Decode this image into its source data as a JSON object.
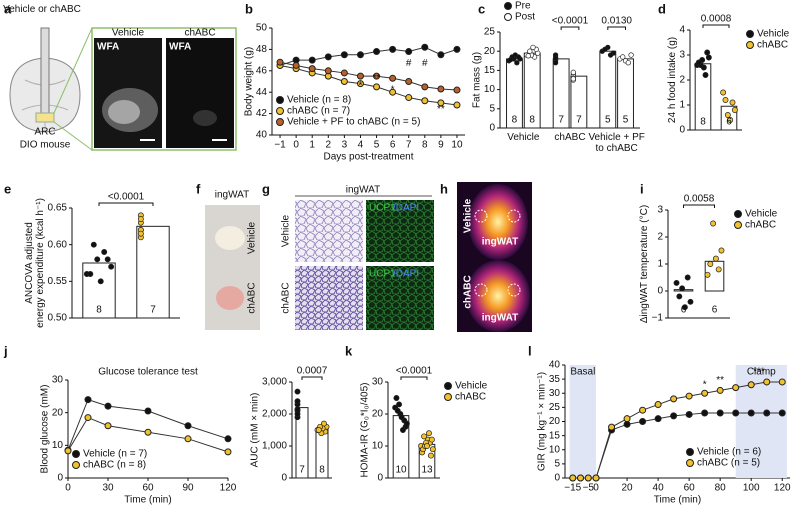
{
  "chart_data": [
    {
      "panel": "b",
      "type": "line",
      "ylabel": "Body weight (g)",
      "xlabel": "Days post-treatment",
      "x": [
        -1,
        0,
        1,
        2,
        3,
        4,
        5,
        6,
        7,
        8,
        9,
        10
      ],
      "xlim": [
        -1.5,
        10.5
      ],
      "xticks": [
        {
          "value": -1,
          "label": "−1"
        },
        0,
        1,
        2,
        3,
        4,
        5,
        6,
        7,
        8,
        9,
        10
      ],
      "ylim": [
        40,
        50
      ],
      "yticks": [
        40,
        42,
        44,
        46,
        48,
        50
      ],
      "legend": "bottom-left",
      "series": [
        {
          "name": "Vehicle (n = 8)",
          "color": "#111111",
          "values": [
            46.5,
            47,
            47,
            47.3,
            47.5,
            47.5,
            47.8,
            48,
            47.8,
            48.2,
            47.5,
            48
          ]
        },
        {
          "name": "chABC (n = 7)",
          "color": "#f2c12e",
          "values": [
            46.5,
            46.2,
            45.8,
            45.5,
            45,
            44.8,
            44.5,
            44,
            43.5,
            43.2,
            43,
            42.8
          ]
        },
        {
          "name": "Vehicle + PF to chABC (n = 5)",
          "color": "#b8612a",
          "values": [
            46.8,
            46.5,
            46.2,
            46,
            45.8,
            45.5,
            45.5,
            45.3,
            45,
            44.5,
            44.3,
            44.2
          ]
        }
      ],
      "annotations": [
        "*",
        "**",
        "*",
        "#",
        "#",
        "**"
      ]
    },
    {
      "panel": "c",
      "type": "bar",
      "ylabel": "Fat mass (g)",
      "categories": [
        "Vehicle",
        "chABC",
        "Vehicle + PF to chABC"
      ],
      "ylim": [
        0,
        25
      ],
      "yticks": [
        0,
        5,
        10,
        15,
        20,
        25
      ],
      "legend": "top",
      "series": [
        {
          "name": "Pre",
          "color": "#111111",
          "values": [
            18,
            18,
            20
          ],
          "n_labels": [
            "8",
            "7",
            "5"
          ],
          "points": [
            [
              17.5,
              18,
              18.5,
              17,
              19,
              18,
              18.5,
              17.8
            ],
            [
              18,
              18.5,
              17.5,
              19,
              18,
              17,
              18.2
            ],
            [
              20,
              21,
              19.5,
              20.5,
              19
            ]
          ]
        },
        {
          "name": "Post",
          "color": "#ffffff",
          "values": [
            19.5,
            13.5,
            18
          ],
          "n_labels": [
            "8",
            "7",
            "5"
          ],
          "points": [
            [
              19,
              19.5,
              20.5,
              18.5,
              21,
              19,
              20,
              18.8
            ],
            [
              13,
              14,
              12.5,
              13.5,
              14.5,
              13,
              12.8
            ],
            [
              18,
              17.5,
              19,
              18.5,
              17
            ]
          ]
        }
      ],
      "annotations": [
        "<0.0001",
        "0.0130"
      ]
    },
    {
      "panel": "d",
      "type": "bar",
      "ylabel": "24 h food intake (g)",
      "categories": [
        "Vehicle",
        "chABC"
      ],
      "values": [
        2.65,
        0.95
      ],
      "colors": [
        "#111111",
        "#f2c12e"
      ],
      "ylim": [
        0,
        4
      ],
      "yticks": [
        0,
        1,
        2,
        3,
        4
      ],
      "legend": "right",
      "points": [
        [
          2.6,
          2.9,
          3.1,
          2.2,
          2.5,
          2.8,
          2.6,
          2.7
        ],
        [
          1.5,
          1.2,
          0.6,
          0.4,
          1.1,
          0.8
        ]
      ],
      "n_labels": [
        "8",
        "6"
      ],
      "annotations": [
        "0.0008"
      ]
    },
    {
      "panel": "e",
      "type": "bar",
      "ylabel": [
        "ANCOVA adjusted",
        "energy expenditure (kcal h⁻¹)"
      ],
      "values": [
        0.575,
        0.625
      ],
      "colors": [
        "#111111",
        "#f2c12e"
      ],
      "ylim": [
        0.5,
        0.65
      ],
      "yticks": [
        {
          "value": 0.5,
          "label": "0.50"
        },
        0.55,
        {
          "value": 0.6,
          "label": "0.60"
        },
        0.65
      ],
      "points": [
        [
          0.56,
          0.57,
          0.58,
          0.59,
          0.55,
          0.58,
          0.6,
          0.56
        ],
        [
          0.61,
          0.62,
          0.64,
          0.63,
          0.62,
          0.615,
          0.635
        ]
      ],
      "n_labels": [
        "8",
        "7"
      ],
      "annotations": [
        "<0.0001"
      ]
    },
    {
      "panel": "i",
      "type": "bar",
      "ylabel": "ΔingWAT temperature (°C)",
      "categories": [
        "Vehicle",
        "chABC"
      ],
      "values": [
        0.05,
        1.1
      ],
      "colors": [
        "#111111",
        "#f2c12e"
      ],
      "ylim": [
        -1,
        3
      ],
      "yticks": [
        {
          "value": -1,
          "label": "−1"
        },
        0,
        1,
        2,
        3
      ],
      "legend": "right",
      "points": [
        [
          0.3,
          -0.2,
          0.1,
          -0.6,
          0.5,
          -0.4
        ],
        [
          0.6,
          1.0,
          2.5,
          1.2,
          0.8,
          1.5
        ]
      ],
      "n_labels": [
        "6",
        "6"
      ],
      "annotations": [
        "0.0058"
      ]
    },
    {
      "panel": "j",
      "type": "line",
      "title": "Glucose tolerance test",
      "ylabel": "Blood glucose (mM)",
      "xlabel": "Time (min)",
      "x": [
        0,
        15,
        30,
        60,
        90,
        120
      ],
      "xlim": [
        0,
        120
      ],
      "xticks": [
        0,
        30,
        60,
        90,
        120
      ],
      "ylim": [
        0,
        30
      ],
      "yticks": [
        0,
        10,
        20,
        30
      ],
      "legend": "bottom-left",
      "series": [
        {
          "name": "Vehicle (n = 7)",
          "color": "#111111",
          "values": [
            8.5,
            24,
            22,
            20.5,
            16,
            12
          ]
        },
        {
          "name": "chABC (n = 8)",
          "color": "#f2c12e",
          "values": [
            8.3,
            18.5,
            16,
            14,
            12,
            8
          ]
        }
      ]
    },
    {
      "type": "bar",
      "ylabel": "AUC (mM × min)",
      "values": [
        2200,
        1550
      ],
      "colors": [
        "#111111",
        "#f2c12e"
      ],
      "ylim": [
        0,
        3000
      ],
      "yticks": [
        0,
        {
          "value": 1000,
          "label": "1,000"
        },
        {
          "value": 2000,
          "label": "2,000"
        },
        {
          "value": 3000,
          "label": "3,000"
        }
      ],
      "points": [
        [
          2300,
          2100,
          1900,
          2400,
          2000,
          2700,
          2150
        ],
        [
          1500,
          1600,
          1450,
          1700,
          1550,
          1400,
          1600,
          1500
        ]
      ],
      "n_labels": [
        "7",
        "8"
      ],
      "annotations": [
        "0.0007"
      ]
    },
    {
      "panel": "k",
      "type": "bar",
      "ylabel": "HOMA-IR (G₀*I₀/405)",
      "categories": [
        "Vehicle",
        "chABC"
      ],
      "values": [
        19.5,
        10.5
      ],
      "colors": [
        "#111111",
        "#f2c12e"
      ],
      "ylim": [
        0,
        30
      ],
      "yticks": [
        0,
        10,
        20,
        30
      ],
      "legend": "right",
      "points": [
        [
          22,
          18,
          20,
          25,
          16,
          19,
          21,
          17,
          15,
          23
        ],
        [
          10,
          12,
          8,
          14,
          9,
          11,
          13,
          7,
          10,
          12,
          11,
          9,
          10
        ]
      ],
      "n_labels": [
        "10",
        "13"
      ],
      "annotations": [
        "<0.0001"
      ]
    },
    {
      "panel": "l",
      "type": "line",
      "ylabel": "GIR (mg kg⁻¹ × min⁻¹)",
      "xlabel": "Time (min)",
      "x": [
        -15,
        -10,
        -5,
        0,
        10,
        20,
        30,
        40,
        50,
        60,
        70,
        80,
        90,
        100,
        110,
        120
      ],
      "xlim": [
        -20,
        125
      ],
      "xticks": [
        {
          "value": -15,
          "label": "−15"
        },
        {
          "value": -5,
          "label": "−5"
        },
        0,
        20,
        40,
        60,
        80,
        100,
        120
      ],
      "ylim": [
        0,
        40
      ],
      "yticks": [
        0,
        5,
        10,
        15,
        20,
        25,
        30,
        35,
        40
      ],
      "legend": "bottom-right",
      "regions": [
        {
          "label": "Basal",
          "range": [
            -17,
            0
          ]
        },
        {
          "label": "Clamp",
          "range": [
            90,
            123
          ]
        }
      ],
      "series": [
        {
          "name": "Vehicle (n = 6)",
          "color": "#111111",
          "values": [
            0,
            0,
            0,
            0,
            17,
            19,
            20,
            21,
            22,
            22.5,
            23,
            23,
            23,
            23,
            23,
            23
          ]
        },
        {
          "name": "chABC (n = 5)",
          "color": "#f2c12e",
          "values": [
            0,
            0,
            0,
            0,
            18,
            21,
            24,
            26,
            28,
            29,
            30,
            31,
            32,
            33,
            34,
            34
          ]
        }
      ],
      "annotations": [
        "*",
        "**",
        "***"
      ]
    }
  ],
  "images": {
    "a": {
      "panel": "a",
      "injection": "Vehicle or chABC",
      "region": "ARC",
      "model": "DIO mouse",
      "left": "Vehicle",
      "right": "chABC",
      "stain_left": "WFA",
      "stain_right": "WFA"
    },
    "f": {
      "panel": "f",
      "title": "ingWAT",
      "top": "Vehicle",
      "bottom": "chABC"
    },
    "g": {
      "panel": "g",
      "title": "ingWAT",
      "row1": "Vehicle",
      "row2": "chABC",
      "marker1": "UCP1",
      "counter1": "/DAPI",
      "marker2": "UCP1",
      "counter2": "/DAPI"
    },
    "h": {
      "panel": "h",
      "top": "Vehicle",
      "bottom": "chABC",
      "label_top": "ingWAT",
      "label_bottom": "ingWAT"
    }
  }
}
